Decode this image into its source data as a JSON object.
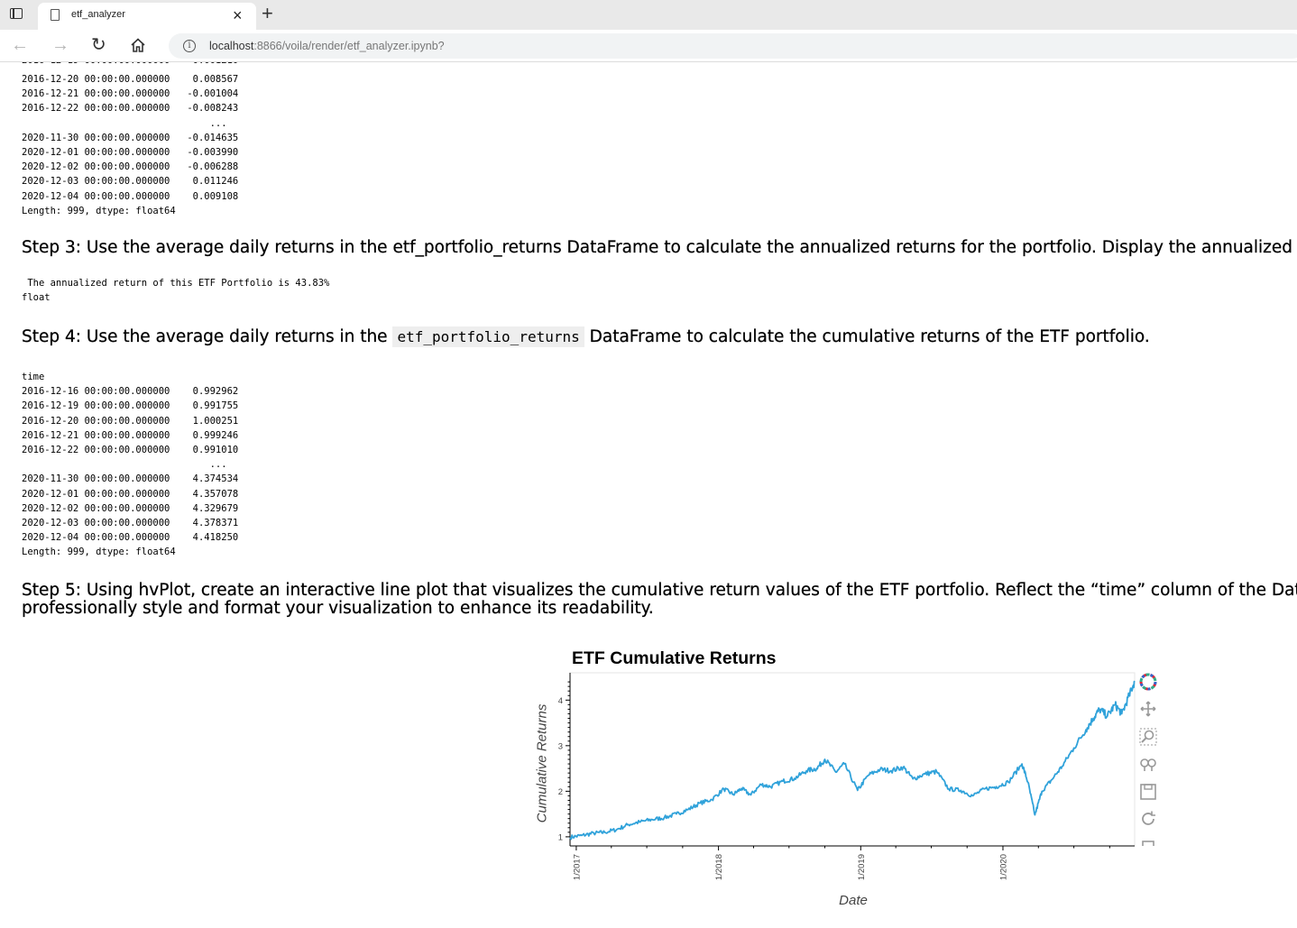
{
  "browser": {
    "tab_title": "etf_analyzer",
    "url_host": "localhost",
    "url_rest": ":8866/voila/render/etf_analyzer.ipynb?"
  },
  "output_step2": "2016-12-20 00:00:00.000000    0.008567\n2016-12-21 00:00:00.000000   -0.001004\n2016-12-22 00:00:00.000000   -0.008243\n                                 ...\n2020-11-30 00:00:00.000000   -0.014635\n2020-12-01 00:00:00.000000   -0.003990\n2020-12-02 00:00:00.000000   -0.006288\n2020-12-03 00:00:00.000000    0.011246\n2020-12-04 00:00:00.000000    0.009108\nLength: 999, dtype: float64",
  "step3": {
    "heading": "Step 3: Use the average daily returns in the etf_portfolio_returns DataFrame to calculate the annualized returns for the portfolio. Display the annualized return",
    "output": " The annualized return of this ETF Portfolio is 43.83%\nfloat"
  },
  "step4": {
    "heading_pre": "Step 4: Use the average daily returns in the ",
    "heading_code": "etf_portfolio_returns",
    "heading_post": " DataFrame to calculate the cumulative returns of the ETF portfolio.",
    "output": "time\n2016-12-16 00:00:00.000000    0.992962\n2016-12-19 00:00:00.000000    0.991755\n2016-12-20 00:00:00.000000    1.000251\n2016-12-21 00:00:00.000000    0.999246\n2016-12-22 00:00:00.000000    0.991010\n                                 ...\n2020-11-30 00:00:00.000000    4.374534\n2020-12-01 00:00:00.000000    4.357078\n2020-12-02 00:00:00.000000    4.329679\n2020-12-03 00:00:00.000000    4.378371\n2020-12-04 00:00:00.000000    4.418250\nLength: 999, dtype: float64"
  },
  "step5": {
    "heading_line1": "Step 5: Using hvPlot, create an interactive line plot that visualizes the cumulative return values of the ETF portfolio. Reflect the “time” column of the DataFrame",
    "heading_line2": "professionally style and format your visualization to enhance its readability."
  },
  "chart_data": {
    "type": "line",
    "title": "ETF Cumulative Returns",
    "xlabel": "Date",
    "ylabel": "Cumulative Returns",
    "xlim": [
      "2016-12-16",
      "2020-12-04"
    ],
    "ylim": [
      0.8,
      4.6
    ],
    "yticks": [
      1,
      2,
      3,
      4
    ],
    "xtick_labels": [
      "1/2017",
      "1/2018",
      "1/2019",
      "1/2020"
    ],
    "line_color": "#30a2da",
    "series": [
      {
        "x": [
          "2016-12-16",
          "2017-01-15",
          "2017-02-15",
          "2017-03-15",
          "2017-04-15",
          "2017-05-15",
          "2017-06-15",
          "2017-07-15",
          "2017-08-15",
          "2017-09-15",
          "2017-10-15",
          "2017-11-15",
          "2017-12-15",
          "2018-01-15",
          "2018-02-08",
          "2018-03-01",
          "2018-03-25",
          "2018-04-20",
          "2018-05-15",
          "2018-06-15",
          "2018-07-15",
          "2018-08-15",
          "2018-09-10",
          "2018-10-01",
          "2018-10-29",
          "2018-11-20",
          "2018-12-24",
          "2019-01-20",
          "2019-02-20",
          "2019-03-20",
          "2019-04-20",
          "2019-05-15",
          "2019-06-15",
          "2019-07-15",
          "2019-08-15",
          "2019-09-15",
          "2019-10-15",
          "2019-11-15",
          "2019-12-15",
          "2020-01-15",
          "2020-02-19",
          "2020-03-05",
          "2020-03-23",
          "2020-04-10",
          "2020-05-05",
          "2020-06-01",
          "2020-07-01",
          "2020-08-01",
          "2020-08-20",
          "2020-09-05",
          "2020-09-25",
          "2020-10-15",
          "2020-11-01",
          "2020-11-20",
          "2020-12-04"
        ],
        "y": [
          0.99,
          1.03,
          1.08,
          1.1,
          1.16,
          1.27,
          1.33,
          1.38,
          1.42,
          1.5,
          1.6,
          1.74,
          1.82,
          2.05,
          1.93,
          2.06,
          1.92,
          2.15,
          2.1,
          2.22,
          2.28,
          2.45,
          2.5,
          2.7,
          2.42,
          2.6,
          2.02,
          2.35,
          2.48,
          2.45,
          2.53,
          2.27,
          2.38,
          2.43,
          2.05,
          2.02,
          1.9,
          2.05,
          2.1,
          2.2,
          2.6,
          2.2,
          1.48,
          2.0,
          2.25,
          2.55,
          2.95,
          3.35,
          3.6,
          3.8,
          3.65,
          3.9,
          3.7,
          4.1,
          4.42
        ]
      }
    ]
  }
}
